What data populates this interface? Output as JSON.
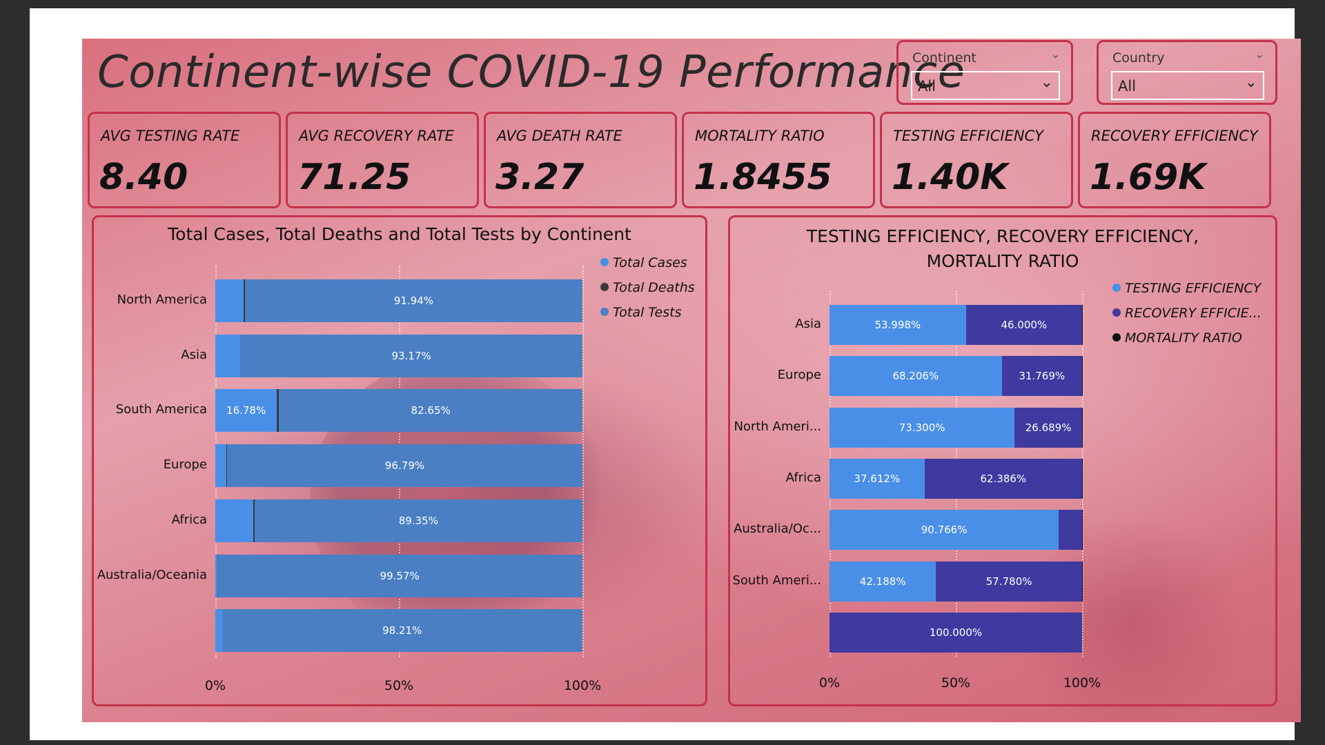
{
  "page_title": "Continent-wise COVID-19 Performance",
  "slicers": [
    {
      "label": "Continent",
      "value": "All"
    },
    {
      "label": "Country",
      "value": "All"
    }
  ],
  "kpis": [
    {
      "label": "AVG TESTING RATE",
      "value": "8.40"
    },
    {
      "label": "AVG RECOVERY RATE",
      "value": "71.25"
    },
    {
      "label": "AVG DEATH RATE",
      "value": "3.27"
    },
    {
      "label": "MORTALITY RATIO",
      "value": "1.8455"
    },
    {
      "label": "TESTING EFFICIENCY",
      "value": "1.40K"
    },
    {
      "label": "RECOVERY EFFICIENCY",
      "value": "1.69K"
    }
  ],
  "colors": {
    "total_cases": "#4a8fe7",
    "total_deaths": "#3a3a3a",
    "total_tests": "#4a7fc4",
    "testing_eff": "#4a8fe7",
    "recovery_eff": "#3f3aa0",
    "mortality": "#111111",
    "accent": "#c4314b"
  },
  "chart_data": [
    {
      "type": "bar",
      "stacked": "100%",
      "orientation": "horizontal",
      "title": "Total Cases, Total Deaths and Total Tests by Continent",
      "categories": [
        "North America",
        "Asia",
        "South America",
        "Europe",
        "Africa",
        "Australia/Oceania",
        ""
      ],
      "series": [
        {
          "name": "Total Cases",
          "values": [
            7.8,
            6.7,
            16.78,
            3.0,
            10.4,
            0.4,
            1.79
          ],
          "labels": [
            "",
            "",
            "16.78%",
            "",
            "",
            "",
            ""
          ]
        },
        {
          "name": "Total Deaths",
          "values": [
            0.26,
            0.13,
            0.57,
            0.21,
            0.25,
            0.03,
            0.0
          ],
          "labels": [
            "",
            "",
            "",
            "",
            "",
            "",
            ""
          ]
        },
        {
          "name": "Total Tests",
          "values": [
            91.94,
            93.17,
            82.65,
            96.79,
            89.35,
            99.57,
            98.21
          ],
          "labels": [
            "91.94%",
            "93.17%",
            "82.65%",
            "96.79%",
            "89.35%",
            "99.57%",
            "98.21%"
          ]
        }
      ],
      "xticks": [
        "0%",
        "50%",
        "100%"
      ],
      "xlim": [
        0,
        100
      ],
      "legend": "top-right"
    },
    {
      "type": "bar",
      "stacked": "100%",
      "orientation": "horizontal",
      "title": "TESTING EFFICIENCY, RECOVERY EFFICIENCY, MORTALITY RATIO",
      "categories": [
        "Asia",
        "Europe",
        "North Ameri...",
        "Africa",
        "Australia/Oc...",
        "South Ameri...",
        ""
      ],
      "series": [
        {
          "name": "TESTING EFFICIENCY",
          "values": [
            53.998,
            68.206,
            73.3,
            37.612,
            90.766,
            42.188,
            0
          ],
          "labels": [
            "53.998%",
            "68.206%",
            "73.300%",
            "37.612%",
            "90.766%",
            "42.188%",
            ""
          ]
        },
        {
          "name": "RECOVERY EFFICIE...",
          "values": [
            46.0,
            31.769,
            26.689,
            62.386,
            9.2,
            57.78,
            100.0
          ],
          "labels": [
            "46.000%",
            "31.769%",
            "26.689%",
            "62.386%",
            "",
            "57.780%",
            "100.000%"
          ]
        },
        {
          "name": "MORTALITY RATIO",
          "values": [
            0.002,
            0.025,
            0.011,
            0.002,
            0.034,
            0.032,
            0
          ],
          "labels": [
            "",
            "",
            "",
            "",
            "",
            "",
            ""
          ]
        }
      ],
      "xticks": [
        "0%",
        "50%",
        "100%"
      ],
      "xlim": [
        0,
        100
      ],
      "legend": "top-right"
    }
  ]
}
